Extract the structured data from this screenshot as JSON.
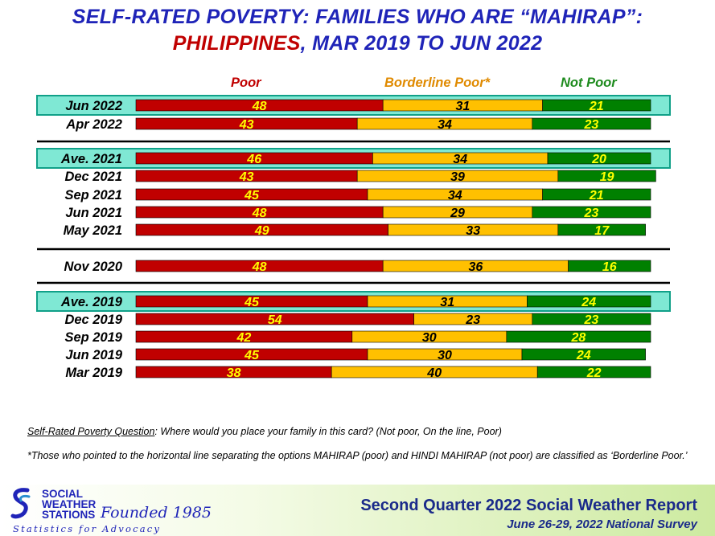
{
  "title": {
    "line1": "SELF-RATED POVERTY: FAMILIES WHO ARE “MAHIRAP”:",
    "line2_red": "PHILIPPINES",
    "line2_rest": ", MAR 2019 TO JUN 2022"
  },
  "colors": {
    "poor": "#c00000",
    "borderline": "#ffc000",
    "not_poor": "#008000",
    "highlight": "#7fe8d4",
    "label_on_red": "#ffff00",
    "label_on_yellow": "#000000",
    "label_on_green": "#ffff00"
  },
  "chart_data": {
    "type": "bar",
    "orientation": "horizontal",
    "stacked": true,
    "unit": "percent",
    "title": "Self-Rated Poverty: Families who are “Mahirap”: Philippines, Mar 2019 to Jun 2022",
    "legend": [
      "Poor",
      "Borderline Poor*",
      "Not Poor"
    ],
    "legend_position": "top",
    "categories": [
      "Jun 2022",
      "Apr 2022",
      "Ave. 2021",
      "Dec 2021",
      "Sep 2021",
      "Jun 2021",
      "May 2021",
      "Nov 2020",
      "Ave. 2019",
      "Dec 2019",
      "Sep 2019",
      "Jun 2019",
      "Mar 2019"
    ],
    "highlighted": [
      "Jun 2022",
      "Ave. 2021",
      "Ave. 2019"
    ],
    "groups": [
      [
        "Jun 2022",
        "Apr 2022"
      ],
      [
        "Ave. 2021",
        "Dec 2021",
        "Sep 2021",
        "Jun 2021",
        "May 2021"
      ],
      [
        "Nov 2020"
      ],
      [
        "Ave. 2019",
        "Dec 2019",
        "Sep 2019",
        "Jun 2019",
        "Mar 2019"
      ]
    ],
    "series": [
      {
        "name": "Poor",
        "values": [
          48,
          43,
          46,
          43,
          45,
          48,
          49,
          48,
          45,
          54,
          42,
          45,
          38
        ]
      },
      {
        "name": "Borderline Poor*",
        "values": [
          31,
          34,
          34,
          39,
          34,
          29,
          33,
          36,
          31,
          23,
          30,
          30,
          40
        ]
      },
      {
        "name": "Not Poor",
        "values": [
          21,
          23,
          20,
          19,
          21,
          23,
          17,
          16,
          24,
          23,
          28,
          24,
          22
        ]
      }
    ],
    "xlim": [
      0,
      100
    ]
  },
  "footnotes": {
    "question_label": "Self-Rated Poverty Question",
    "question_text": ":  Where would you place your family in this card?  (Not poor, On the line, Poor)",
    "borderline_note": "*Those who pointed to the horizontal line separating the options MAHIRAP (poor) and HINDI MAHIRAP (not poor) are classified as ‘Borderline Poor.’"
  },
  "footer": {
    "org_line1": "SOCIAL",
    "org_line2": "WEATHER",
    "org_line3": "STATIONS",
    "founded": "Founded 1985",
    "tagline": "Statistics for Advocacy",
    "report_title": "Second Quarter 2022 Social Weather Report",
    "survey_dates": "June 26-29, 2022 National Survey"
  }
}
